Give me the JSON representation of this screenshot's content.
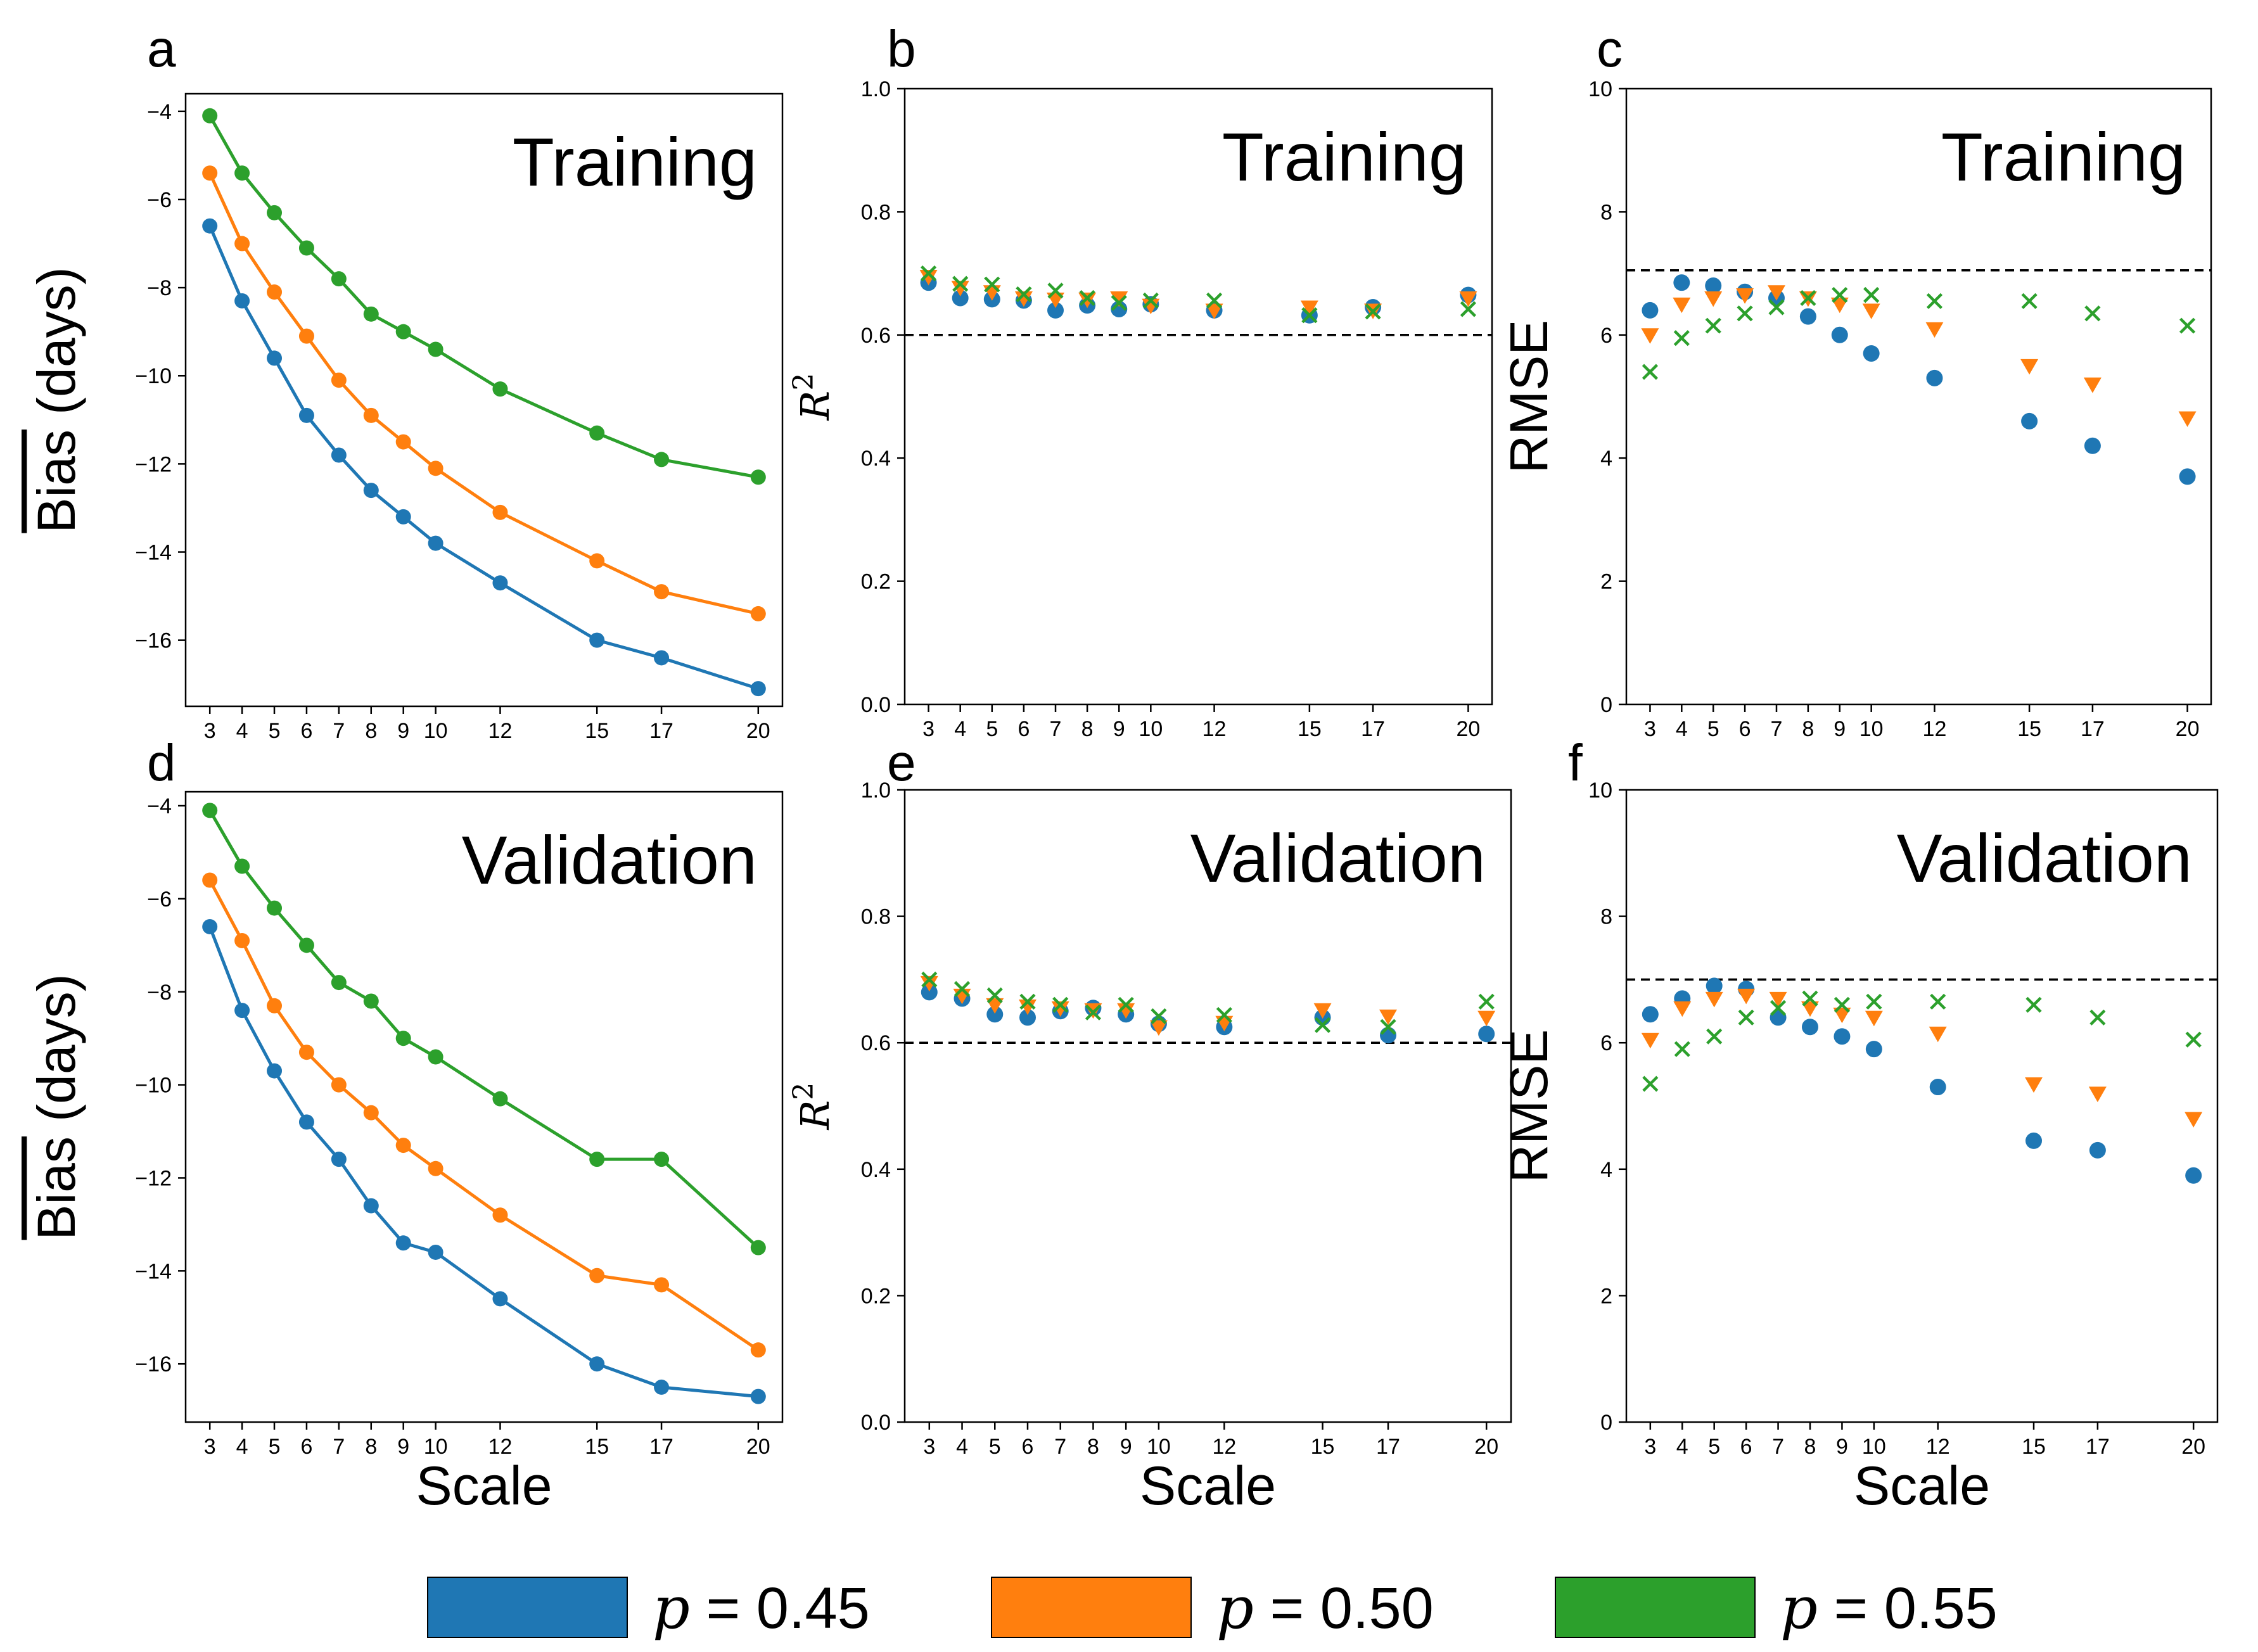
{
  "figure": {
    "legend": [
      {
        "symbol": "p",
        "rest": " = 0.45",
        "color": "#1f77b4"
      },
      {
        "symbol": "p",
        "rest": " = 0.50",
        "color": "#ff7f0e"
      },
      {
        "symbol": "p",
        "rest": " = 0.55",
        "color": "#2ca02c"
      }
    ]
  },
  "chart_data": [
    {
      "panel": "a",
      "type": "line",
      "overlay_label": "Training",
      "xlabel": "",
      "ylabel": "Bias (days)",
      "ylabel_overline": "Bias",
      "ylabel_rest": " (days)",
      "x": [
        3,
        4,
        5,
        6,
        7,
        8,
        9,
        10,
        12,
        15,
        17,
        20
      ],
      "xticks": [
        "3",
        "4",
        "5",
        "6",
        "7",
        "8",
        "9",
        "10",
        "12",
        "15",
        "17",
        "20"
      ],
      "ylim": [
        -17.5,
        -3.6
      ],
      "yticks": [
        -16,
        -14,
        -12,
        -10,
        -8,
        -6,
        -4
      ],
      "ytick_labels": [
        "−16",
        "−14",
        "−12",
        "−10",
        "−8",
        "−6",
        "−4"
      ],
      "series": [
        {
          "name": "p = 0.45",
          "color": "#1f77b4",
          "marker": "o",
          "values": [
            -6.6,
            -8.3,
            -9.6,
            -10.9,
            -11.8,
            -12.6,
            -13.2,
            -13.8,
            -14.7,
            -16.0,
            -16.4,
            -17.1
          ]
        },
        {
          "name": "p = 0.50",
          "color": "#ff7f0e",
          "marker": "o",
          "values": [
            -5.4,
            -7.0,
            -8.1,
            -9.1,
            -10.1,
            -10.9,
            -11.5,
            -12.1,
            -13.1,
            -14.2,
            -14.9,
            -15.4
          ]
        },
        {
          "name": "p = 0.55",
          "color": "#2ca02c",
          "marker": "o",
          "values": [
            -4.1,
            -5.4,
            -6.3,
            -7.1,
            -7.8,
            -8.6,
            -9.0,
            -9.4,
            -10.3,
            -11.3,
            -11.9,
            -12.3
          ]
        }
      ]
    },
    {
      "panel": "b",
      "type": "scatter",
      "overlay_label": "Training",
      "xlabel": "",
      "ylabel": "R",
      "ylabel_sup": "2",
      "x": [
        3,
        4,
        5,
        6,
        7,
        8,
        9,
        10,
        12,
        15,
        17,
        20
      ],
      "xticks": [
        "3",
        "4",
        "5",
        "6",
        "7",
        "8",
        "9",
        "10",
        "12",
        "15",
        "17",
        "20"
      ],
      "ylim": [
        0.0,
        1.0
      ],
      "yticks": [
        0.0,
        0.2,
        0.4,
        0.6,
        0.8,
        1.0
      ],
      "ytick_labels": [
        "0.0",
        "0.2",
        "0.4",
        "0.6",
        "0.8",
        "1.0"
      ],
      "hline": 0.6,
      "series": [
        {
          "name": "p = 0.45",
          "color": "#1f77b4",
          "marker": "o",
          "values": [
            0.685,
            0.66,
            0.658,
            0.656,
            0.64,
            0.648,
            0.642,
            0.65,
            0.64,
            0.632,
            0.645,
            0.665
          ]
        },
        {
          "name": "p = 0.50",
          "color": "#ff7f0e",
          "marker": "v",
          "values": [
            0.695,
            0.677,
            0.67,
            0.66,
            0.658,
            0.658,
            0.66,
            0.648,
            0.64,
            0.645,
            0.64,
            0.66
          ]
        },
        {
          "name": "p = 0.55",
          "color": "#2ca02c",
          "marker": "x",
          "values": [
            0.7,
            0.683,
            0.682,
            0.666,
            0.672,
            0.66,
            0.652,
            0.656,
            0.656,
            0.632,
            0.638,
            0.642
          ]
        }
      ]
    },
    {
      "panel": "c",
      "type": "scatter",
      "overlay_label": "Training",
      "xlabel": "",
      "ylabel": "RMSE",
      "x": [
        3,
        4,
        5,
        6,
        7,
        8,
        9,
        10,
        12,
        15,
        17,
        20
      ],
      "xticks": [
        "3",
        "4",
        "5",
        "6",
        "7",
        "8",
        "9",
        "10",
        "12",
        "15",
        "17",
        "20"
      ],
      "ylim": [
        0,
        10
      ],
      "yticks": [
        0,
        2,
        4,
        6,
        8,
        10
      ],
      "ytick_labels": [
        "0",
        "2",
        "4",
        "6",
        "8",
        "10"
      ],
      "hline": 7.05,
      "series": [
        {
          "name": "p = 0.45",
          "color": "#1f77b4",
          "marker": "o",
          "values": [
            6.4,
            6.85,
            6.8,
            6.7,
            6.6,
            6.3,
            6.0,
            5.7,
            5.3,
            4.6,
            4.2,
            3.7
          ]
        },
        {
          "name": "p = 0.50",
          "color": "#ff7f0e",
          "marker": "v",
          "values": [
            6.0,
            6.5,
            6.6,
            6.65,
            6.7,
            6.6,
            6.5,
            6.4,
            6.1,
            5.5,
            5.2,
            4.65
          ]
        },
        {
          "name": "p = 0.55",
          "color": "#2ca02c",
          "marker": "x",
          "values": [
            5.4,
            5.95,
            6.15,
            6.35,
            6.45,
            6.6,
            6.65,
            6.65,
            6.55,
            6.55,
            6.35,
            6.15
          ]
        }
      ]
    },
    {
      "panel": "d",
      "type": "line",
      "overlay_label": "Validation",
      "xlabel": "Scale",
      "ylabel": "Bias (days)",
      "ylabel_overline": "Bias",
      "ylabel_rest": " (days)",
      "x": [
        3,
        4,
        5,
        6,
        7,
        8,
        9,
        10,
        12,
        15,
        17,
        20
      ],
      "xticks": [
        "3",
        "4",
        "5",
        "6",
        "7",
        "8",
        "9",
        "10",
        "12",
        "15",
        "17",
        "20"
      ],
      "ylim": [
        -17.25,
        -3.7
      ],
      "yticks": [
        -16,
        -14,
        -12,
        -10,
        -8,
        -6,
        -4
      ],
      "ytick_labels": [
        "−16",
        "−14",
        "−12",
        "−10",
        "−8",
        "−6",
        "−4"
      ],
      "series": [
        {
          "name": "p = 0.45",
          "color": "#1f77b4",
          "marker": "o",
          "values": [
            -6.6,
            -8.4,
            -9.7,
            -10.8,
            -11.6,
            -12.6,
            -13.4,
            -13.6,
            -14.6,
            -16.0,
            -16.5,
            -16.7
          ]
        },
        {
          "name": "p = 0.50",
          "color": "#ff7f0e",
          "marker": "o",
          "values": [
            -5.6,
            -6.9,
            -8.3,
            -9.3,
            -10.0,
            -10.6,
            -11.3,
            -11.8,
            -12.8,
            -14.1,
            -14.3,
            -15.7
          ]
        },
        {
          "name": "p = 0.55",
          "color": "#2ca02c",
          "marker": "o",
          "values": [
            -4.1,
            -5.3,
            -6.2,
            -7.0,
            -7.8,
            -8.2,
            -9.0,
            -9.4,
            -10.3,
            -11.6,
            -11.6,
            -13.5
          ]
        }
      ]
    },
    {
      "panel": "e",
      "type": "scatter",
      "overlay_label": "Validation",
      "xlabel": "Scale",
      "ylabel": "R",
      "ylabel_sup": "2",
      "x": [
        3,
        4,
        5,
        6,
        7,
        8,
        9,
        10,
        12,
        15,
        17,
        20
      ],
      "xticks": [
        "3",
        "4",
        "5",
        "6",
        "7",
        "8",
        "9",
        "10",
        "12",
        "15",
        "17",
        "20"
      ],
      "ylim": [
        0.0,
        1.0
      ],
      "yticks": [
        0.0,
        0.2,
        0.4,
        0.6,
        0.8,
        1.0
      ],
      "ytick_labels": [
        "0.0",
        "0.2",
        "0.4",
        "0.6",
        "0.8",
        "1.0"
      ],
      "hline": 0.6,
      "series": [
        {
          "name": "p = 0.45",
          "color": "#1f77b4",
          "marker": "o",
          "values": [
            0.68,
            0.67,
            0.645,
            0.64,
            0.65,
            0.655,
            0.645,
            0.63,
            0.625,
            0.64,
            0.612,
            0.614
          ]
        },
        {
          "name": "p = 0.50",
          "color": "#ff7f0e",
          "marker": "v",
          "values": [
            0.695,
            0.675,
            0.66,
            0.658,
            0.655,
            0.652,
            0.652,
            0.625,
            0.632,
            0.652,
            0.642,
            0.64
          ]
        },
        {
          "name": "p = 0.55",
          "color": "#2ca02c",
          "marker": "x",
          "values": [
            0.7,
            0.685,
            0.675,
            0.665,
            0.66,
            0.648,
            0.66,
            0.642,
            0.644,
            0.628,
            0.625,
            0.665
          ]
        }
      ]
    },
    {
      "panel": "f",
      "type": "scatter",
      "overlay_label": "Validation",
      "xlabel": "Scale",
      "ylabel": "RMSE",
      "x": [
        3,
        4,
        5,
        6,
        7,
        8,
        9,
        10,
        12,
        15,
        17,
        20
      ],
      "xticks": [
        "3",
        "4",
        "5",
        "6",
        "7",
        "8",
        "9",
        "10",
        "12",
        "15",
        "17",
        "20"
      ],
      "ylim": [
        0,
        10
      ],
      "yticks": [
        0,
        2,
        4,
        6,
        8,
        10
      ],
      "ytick_labels": [
        "0",
        "2",
        "4",
        "6",
        "8",
        "10"
      ],
      "hline": 7.0,
      "series": [
        {
          "name": "p = 0.45",
          "color": "#1f77b4",
          "marker": "o",
          "values": [
            6.45,
            6.7,
            6.9,
            6.85,
            6.4,
            6.25,
            6.1,
            5.9,
            5.3,
            4.45,
            4.3,
            3.9
          ]
        },
        {
          "name": "p = 0.50",
          "color": "#ff7f0e",
          "marker": "v",
          "values": [
            6.05,
            6.55,
            6.7,
            6.75,
            6.7,
            6.55,
            6.45,
            6.4,
            6.15,
            5.35,
            5.2,
            4.8
          ]
        },
        {
          "name": "p = 0.55",
          "color": "#2ca02c",
          "marker": "x",
          "values": [
            5.35,
            5.9,
            6.1,
            6.4,
            6.55,
            6.7,
            6.6,
            6.65,
            6.65,
            6.6,
            6.4,
            6.05
          ]
        }
      ]
    }
  ]
}
